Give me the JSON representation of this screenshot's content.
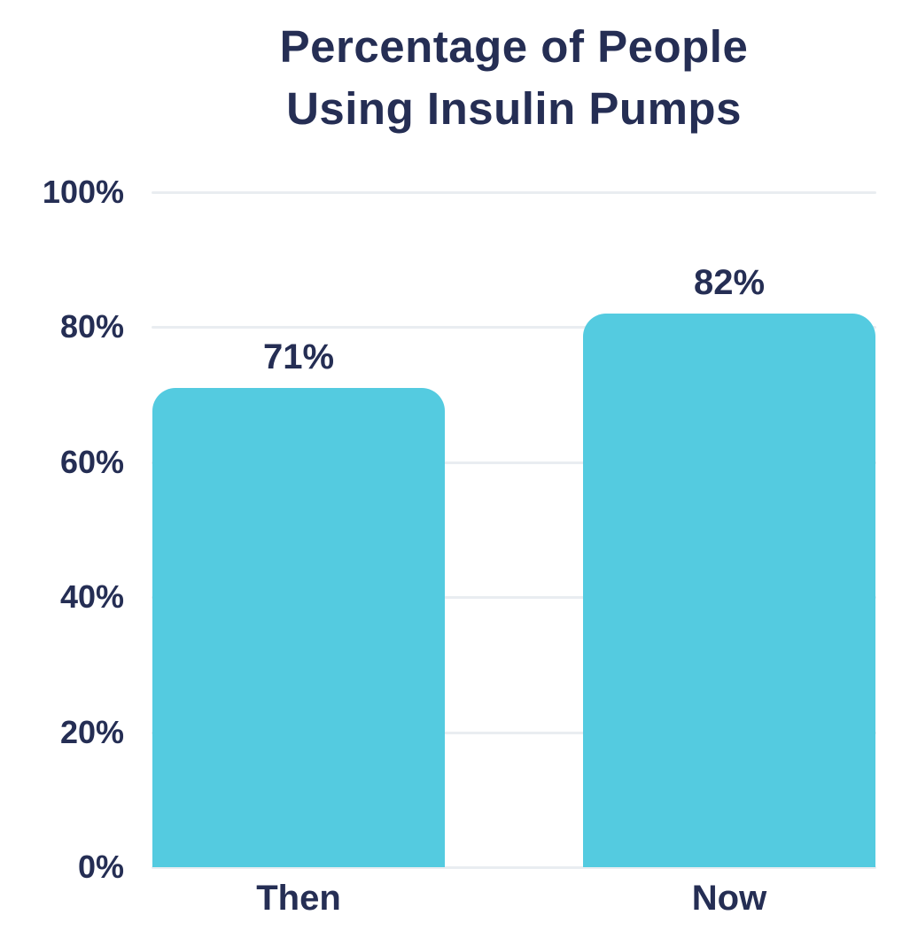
{
  "title": {
    "line1": "Percentage of People",
    "line2": "Using Insulin Pumps"
  },
  "colors": {
    "bar": "#54cbe0",
    "text": "#252e54",
    "gridline": "#e9edf1",
    "background": "#ffffff"
  },
  "chart_data": {
    "type": "bar",
    "title": "Percentage of People Using Insulin Pumps",
    "categories": [
      "Then",
      "Now"
    ],
    "values": [
      71,
      82
    ],
    "value_labels": [
      "71%",
      "82%"
    ],
    "xlabel": "",
    "ylabel": "",
    "ylim": [
      0,
      100
    ],
    "yticks": [
      0,
      20,
      40,
      60,
      80,
      100
    ],
    "ytick_labels": [
      "0%",
      "20%",
      "40%",
      "60%",
      "80%",
      "100%"
    ],
    "grid": true,
    "legend": "none"
  }
}
